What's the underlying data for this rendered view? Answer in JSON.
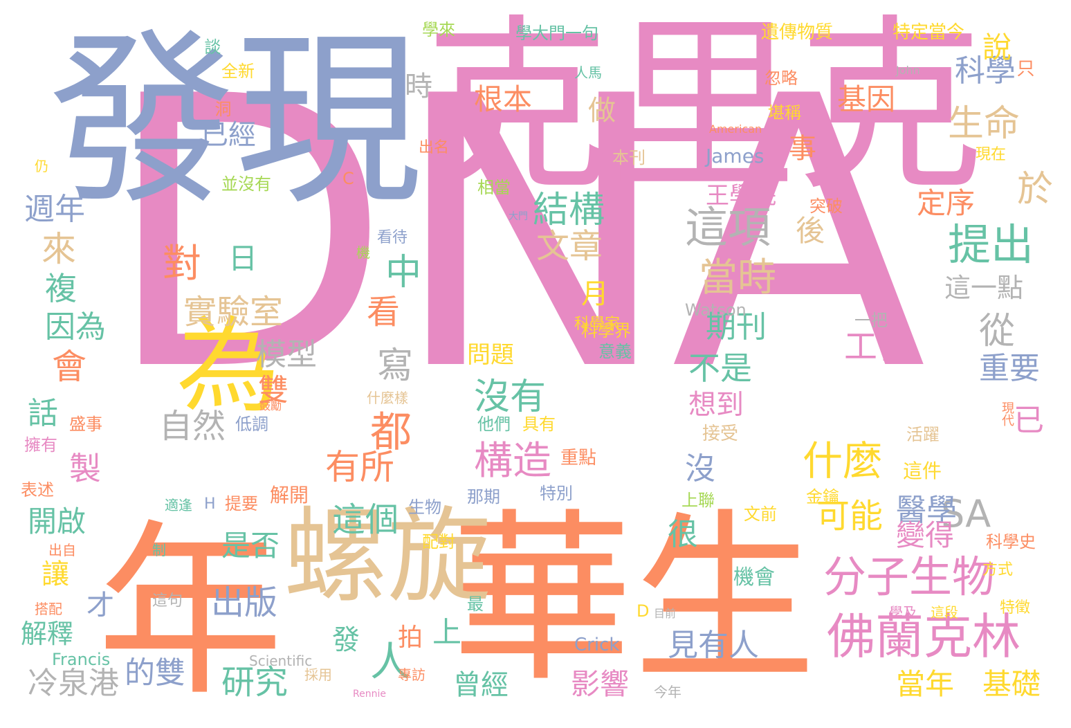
{
  "colors": {
    "pink": "#e78ac3",
    "orange": "#fc8d62",
    "blue": "#8da0cb",
    "tan": "#e5c494",
    "green": "#66c2a5",
    "yellow": "#ffd92f",
    "lime": "#a6d854",
    "gray": "#b3b3b3",
    "background": "#ffffff"
  },
  "words": [
    "DNA",
    "克里克",
    "發現",
    "華生",
    "年",
    "螺旋",
    "為",
    "佛蘭克林",
    "分子生物",
    "這項",
    "提出",
    "當時",
    "生命",
    "結構",
    "實驗室",
    "什麼",
    "構造",
    "研究",
    "SA",
    "文章",
    "基因",
    "根本",
    "科學",
    "沒有",
    "人",
    "都",
    "可能",
    "這個",
    "醫學",
    "對",
    "變得",
    "期刊",
    "工作",
    "不是",
    "有所",
    "自然",
    "模型",
    "寫",
    "中",
    "看",
    "從",
    "重要",
    "因為",
    "於",
    "說",
    "定序",
    "後",
    "週年",
    "出版",
    "影響",
    "冷泉港",
    "見有人",
    "當年",
    "基礎",
    "事",
    "已經",
    "時",
    "做",
    "話",
    "開啟",
    "解釋",
    "曾經",
    "王學院",
    "想到",
    "是否",
    "很",
    "這一點",
    "問題",
    "日",
    "月",
    "複",
    "來",
    "會",
    "製",
    "才",
    "讓",
    "的雙",
    "發",
    "上",
    "拍",
    "沒",
    "已",
    "雙",
    "James",
    "Watson",
    "Crick",
    "Francis",
    "Scientific",
    "John",
    "American",
    "Rennie",
    "C",
    "D",
    "H",
    "遺傳物質",
    "特定當今",
    "學大門一句",
    "學來",
    "談",
    "全新",
    "洞",
    "並沒有",
    "本刊",
    "相當",
    "突破",
    "堪稱",
    "忽略",
    "現在",
    "只",
    "科學界",
    "意義",
    "一把",
    "這件",
    "活躍",
    "接受",
    "重點",
    "他們",
    "具有",
    "盛事",
    "低調",
    "擁有",
    "表述",
    "提要",
    "解開",
    "生物",
    "那期",
    "特別",
    "上聯",
    "金鑰",
    "文前",
    "配對",
    "科學史",
    "方式",
    "學及",
    "這段",
    "特徵",
    "機會",
    "目前",
    "最",
    "出名",
    "出自",
    "制",
    "這句",
    "搭配",
    "採用",
    "專訪",
    "今年",
    "看待",
    "機",
    "仍",
    "人馬",
    "什麼樣",
    "適逢",
    "現代",
    "大門",
    "科學家",
    "鼓勵"
  ]
}
